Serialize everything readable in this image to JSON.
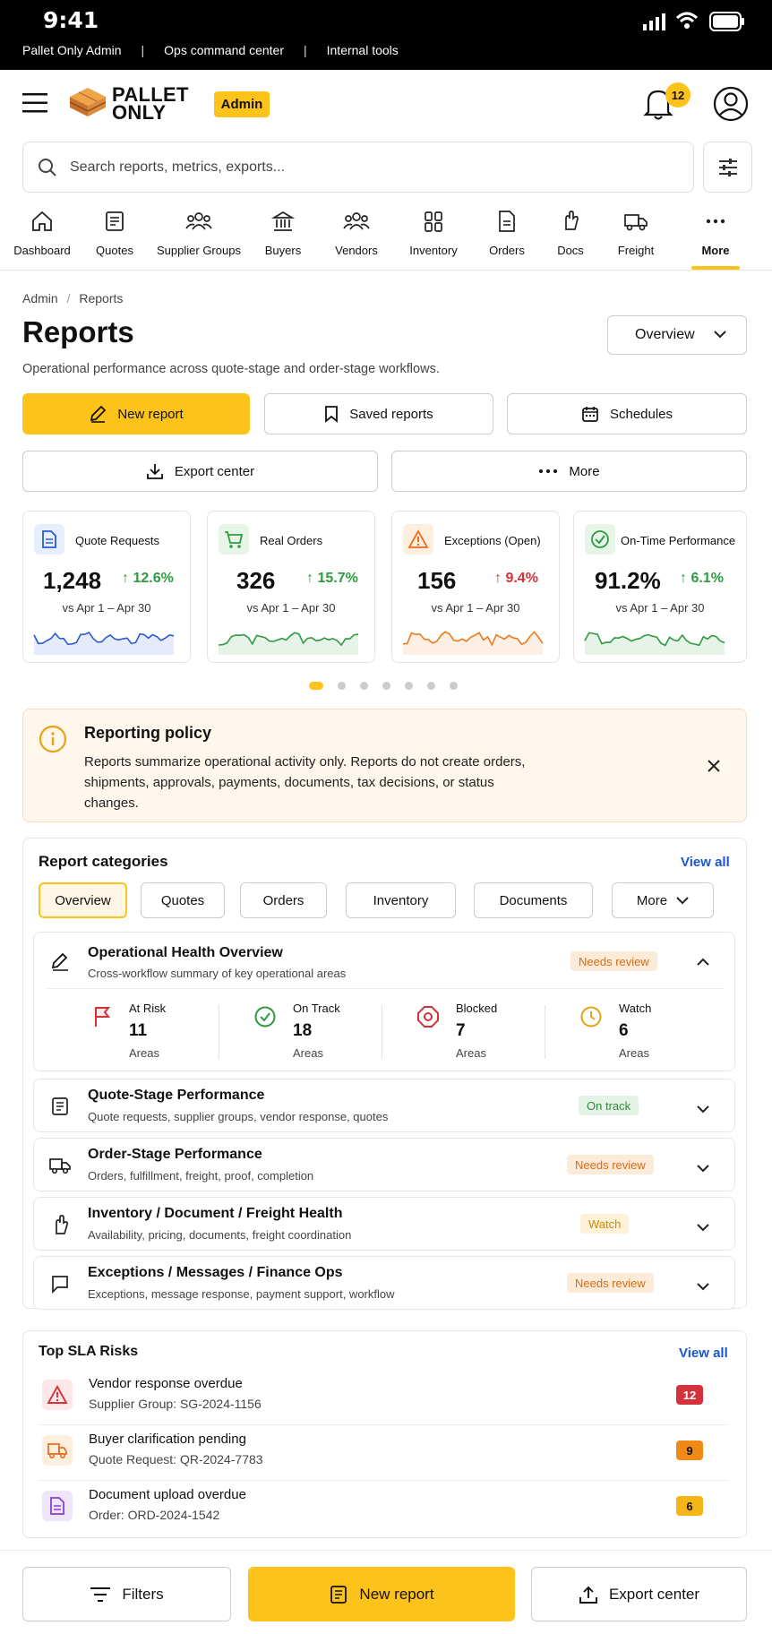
{
  "status_bar": {
    "time": "9:41",
    "crumbs": [
      "Pallet Only Admin",
      "Ops command center",
      "Internal tools"
    ]
  },
  "header": {
    "logo_line1": "PALLET",
    "logo_line2": "ONLY",
    "role_badge": "Admin",
    "notifications": "12"
  },
  "search": {
    "placeholder": "Search reports, metrics, exports..."
  },
  "nav": {
    "items": [
      "Dashboard",
      "Quotes",
      "Supplier Groups",
      "Buyers",
      "Vendors",
      "Inventory",
      "Orders",
      "Docs",
      "Freight",
      "More"
    ],
    "active": "More"
  },
  "breadcrumb": {
    "root": "Admin",
    "sep": "/",
    "current": "Reports"
  },
  "page": {
    "title": "Reports",
    "view_select": "Overview",
    "subtitle": "Operational performance across quote-stage and order-stage workflows."
  },
  "actions": {
    "new_report": "New report",
    "saved_reports": "Saved reports",
    "schedules": "Schedules",
    "export_center": "Export center",
    "more": "More"
  },
  "kpis": [
    {
      "title": "Quote Requests",
      "value": "1,248",
      "change": "12.6%",
      "direction": "up",
      "period": "vs Apr 1 – Apr 30",
      "color": "#2a5bd7"
    },
    {
      "title": "Real Orders",
      "value": "326",
      "change": "15.7%",
      "direction": "up",
      "period": "vs Apr 1 – Apr 30",
      "color": "#2f9a3f"
    },
    {
      "title": "Exceptions (Open)",
      "value": "156",
      "change": "9.4%",
      "direction": "up",
      "period": "vs Apr 1 – Apr 30",
      "color": "#ec7a1c"
    },
    {
      "title": "On-Time Performance",
      "value": "91.2%",
      "change": "6.1%",
      "direction": "up",
      "period": "vs Apr 1 – Apr 30",
      "color": "#2f9a3f"
    }
  ],
  "carousel": {
    "pages": 7,
    "active": 1
  },
  "policy": {
    "title": "Reporting policy",
    "body": "Reports summarize operational activity only. Reports do not create orders, shipments, approvals, payments, documents, tax decisions, or status changes."
  },
  "categories": {
    "title": "Report categories",
    "view_all": "View all",
    "chips": [
      "Overview",
      "Quotes",
      "Orders",
      "Inventory",
      "Documents",
      "More"
    ],
    "active_chip": "Overview",
    "health": {
      "title": "Operational Health Overview",
      "subtitle": "Cross-workflow summary of key operational areas",
      "badge": "Needs review",
      "stats": [
        {
          "label": "At Risk",
          "value": "11",
          "unit": "Areas",
          "color": "#d3323a"
        },
        {
          "label": "On Track",
          "value": "18",
          "unit": "Areas",
          "color": "#2f9a3f"
        },
        {
          "label": "Blocked",
          "value": "7",
          "unit": "Areas",
          "color": "#d3323a"
        },
        {
          "label": "Watch",
          "value": "6",
          "unit": "Areas",
          "color": "#e8a315"
        }
      ]
    },
    "rows": [
      {
        "title": "Quote-Stage Performance",
        "subtitle": "Quote requests, supplier groups, vendor response, quotes",
        "badge": "On track",
        "kind": "track"
      },
      {
        "title": "Order-Stage Performance",
        "subtitle": "Orders, fulfillment, freight, proof, completion",
        "badge": "Needs review",
        "kind": "review"
      },
      {
        "title": "Inventory / Document / Freight Health",
        "subtitle": "Availability, pricing, documents, freight coordination",
        "badge": "Watch",
        "kind": "watch"
      },
      {
        "title": "Exceptions / Messages / Finance Ops",
        "subtitle": "Exceptions, message response, payment support, workflow",
        "badge": "Needs review",
        "kind": "review"
      }
    ]
  },
  "sla": {
    "title": "Top SLA Risks",
    "view_all": "View all",
    "items": [
      {
        "title": "Vendor response overdue",
        "subtitle": "Supplier Group: SG-2024-1156",
        "count": "12",
        "color": "#d3323a"
      },
      {
        "title": "Buyer clarification pending",
        "subtitle": "Quote Request: QR-2024-7783",
        "count": "9",
        "color": "#f08a17"
      },
      {
        "title": "Document upload overdue",
        "subtitle": "Order: ORD-2024-1542",
        "count": "6",
        "color": "#f5b417"
      }
    ]
  },
  "bottom_bar": {
    "filters": "Filters",
    "new_report": "New report",
    "export_center": "Export center"
  }
}
